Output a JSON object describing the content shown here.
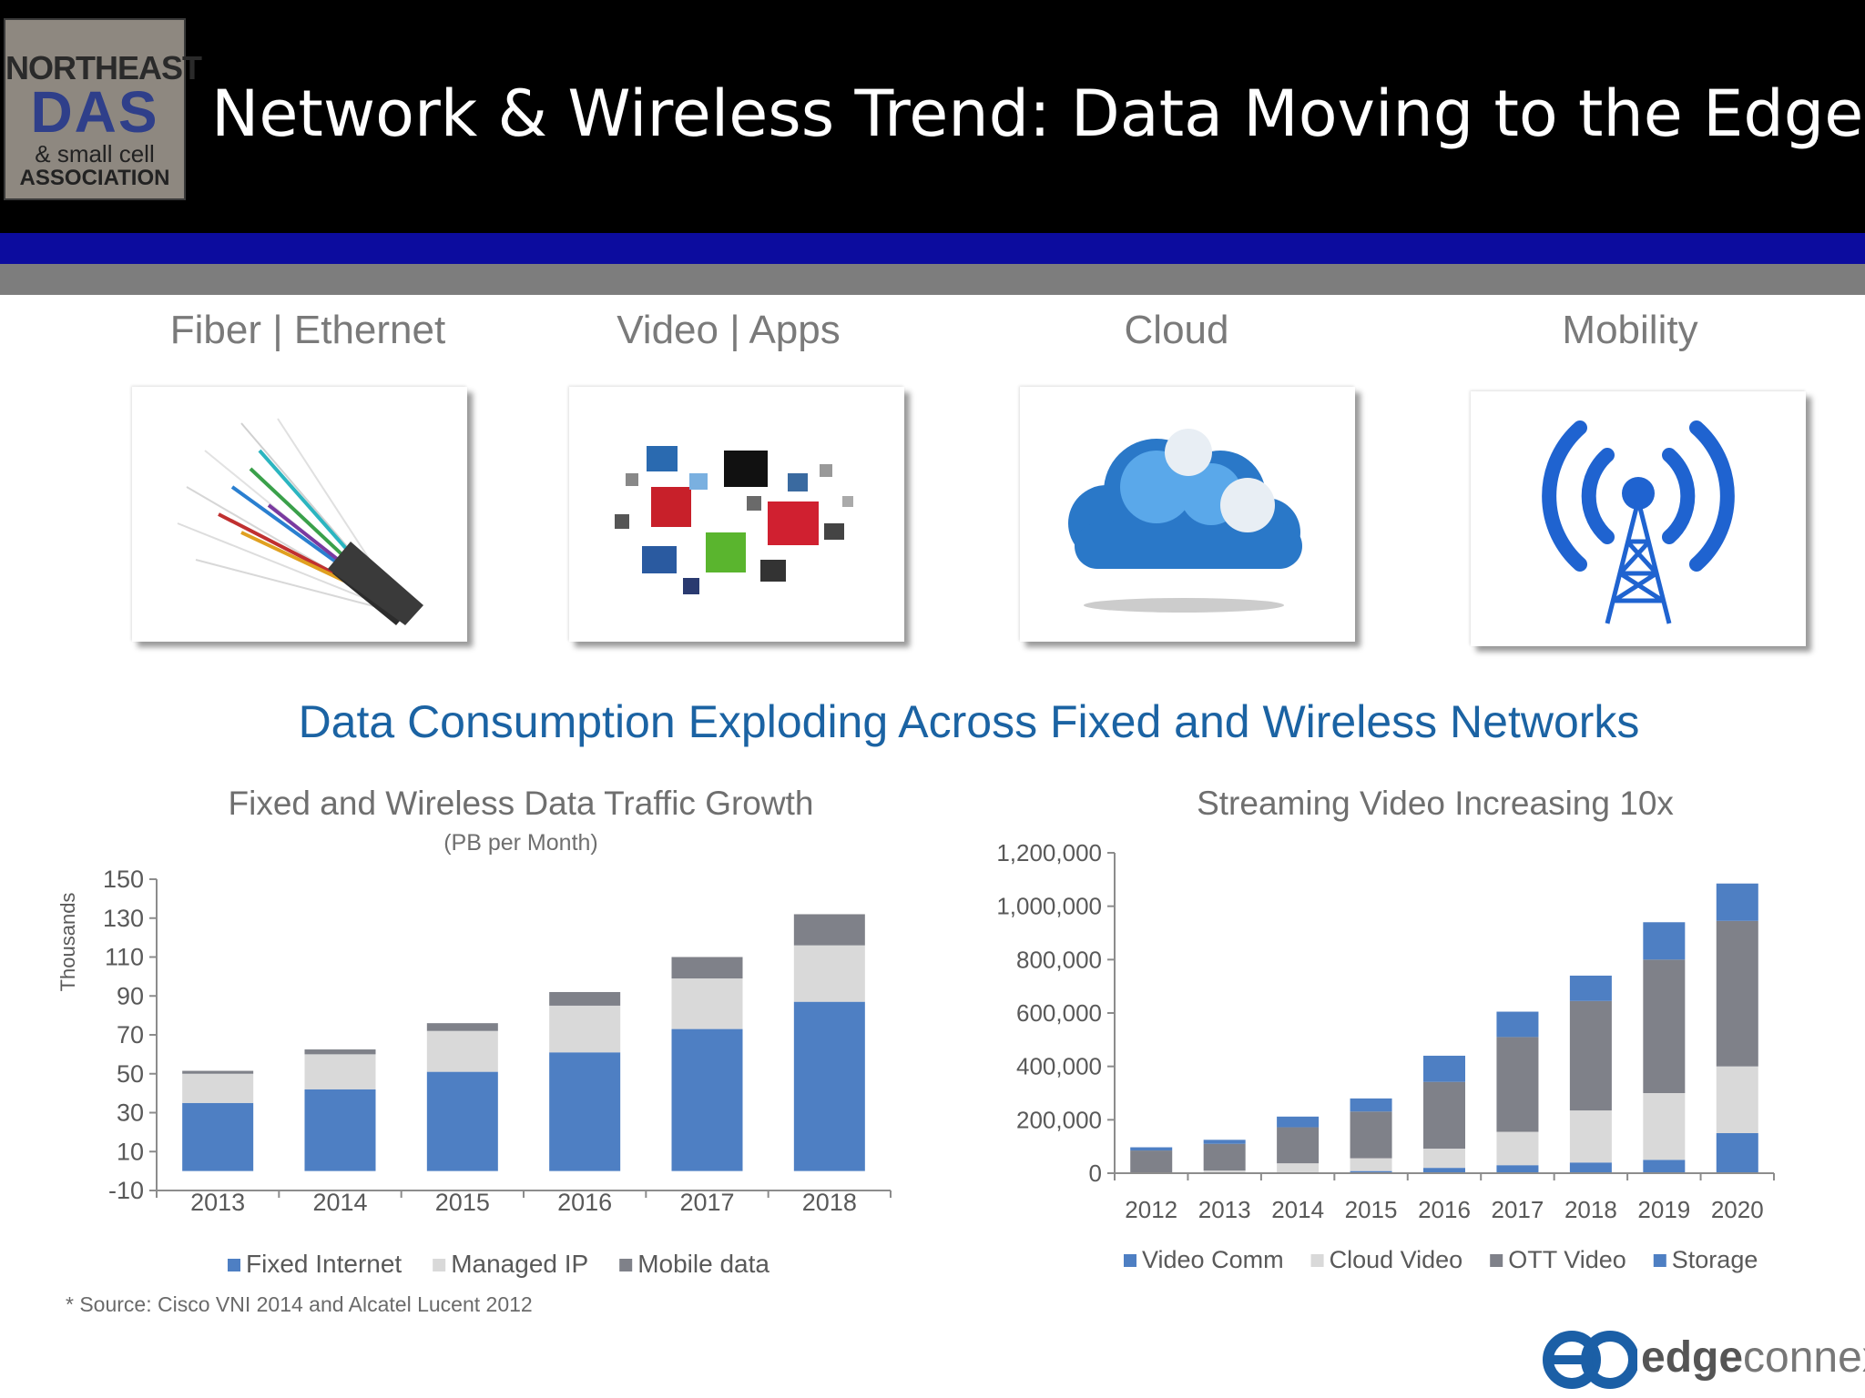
{
  "header": {
    "title": "Network & Wireless Trend: Data Moving to the Edge",
    "logo": {
      "line1": "NORTHEAST",
      "line2": "DAS",
      "line3": "& small cell",
      "line4": "ASSOCIATION"
    }
  },
  "categories": [
    {
      "label": "Fiber | Ethernet",
      "icon": "fiber-cable-icon"
    },
    {
      "label": "Video |  Apps",
      "icon": "video-apps-icon"
    },
    {
      "label": "Cloud",
      "icon": "cloud-icon"
    },
    {
      "label": "Mobility",
      "icon": "wireless-tower-icon"
    }
  ],
  "headline": "Data Consumption Exploding Across Fixed and Wireless Networks",
  "source": "* Source: Cisco VNI 2014 and Alcatel Lucent 2012",
  "brand": {
    "name_bold": "edge",
    "name_light": "connex"
  },
  "colors": {
    "blue": "#4e7fc3",
    "light_gray": "#d9d9d9",
    "dark_gray": "#7f8189",
    "headline": "#1b63a3"
  },
  "chart_data": [
    {
      "type": "bar",
      "stacked": true,
      "title": "Fixed and Wireless Data Traffic Growth",
      "subtitle": "(PB per Month)",
      "ylabel": "Thousands",
      "categories": [
        "2013",
        "2014",
        "2015",
        "2016",
        "2017",
        "2018"
      ],
      "ylim": [
        -10,
        150
      ],
      "yticks": [
        "150",
        "130",
        "110",
        "90",
        "70",
        "50",
        "30",
        "10",
        "-10"
      ],
      "legend_position": "bottom",
      "series": [
        {
          "name": "Fixed Internet",
          "color": "#4e7fc3",
          "values": [
            35,
            42,
            51,
            61,
            73,
            87
          ]
        },
        {
          "name": "Managed IP",
          "color": "#d9d9d9",
          "values": [
            15,
            18,
            21,
            24,
            26,
            29
          ]
        },
        {
          "name": "Mobile data",
          "color": "#7f8189",
          "values": [
            1.5,
            2.5,
            4,
            7,
            11,
            16
          ]
        }
      ]
    },
    {
      "type": "bar",
      "stacked": true,
      "title": "Streaming Video Increasing 10x",
      "categories": [
        "2012",
        "2013",
        "2014",
        "2015",
        "2016",
        "2017",
        "2018",
        "2019",
        "2020"
      ],
      "ylim": [
        0,
        1200000
      ],
      "yticks": [
        "1,200,000",
        "1,000,000",
        "800,000",
        "600,000",
        "400,000",
        "200,000",
        "0"
      ],
      "legend_position": "bottom",
      "series": [
        {
          "name": "Video Comm",
          "color": "#4e7fc3",
          "values": [
            0,
            0,
            2000,
            8000,
            20000,
            30000,
            40000,
            50000,
            150000
          ]
        },
        {
          "name": "Cloud Video",
          "color": "#d9d9d9",
          "values": [
            2000,
            10000,
            35000,
            48000,
            72000,
            125000,
            195000,
            250000,
            250000
          ]
        },
        {
          "name": "OTT Video",
          "color": "#7f8189",
          "values": [
            83000,
            100000,
            135000,
            175000,
            250000,
            355000,
            410000,
            500000,
            545000
          ]
        },
        {
          "name": "Storage",
          "color": "#4e7fc3",
          "values": [
            12000,
            15000,
            40000,
            49000,
            98000,
            95000,
            95000,
            140000,
            140000
          ]
        }
      ]
    }
  ]
}
